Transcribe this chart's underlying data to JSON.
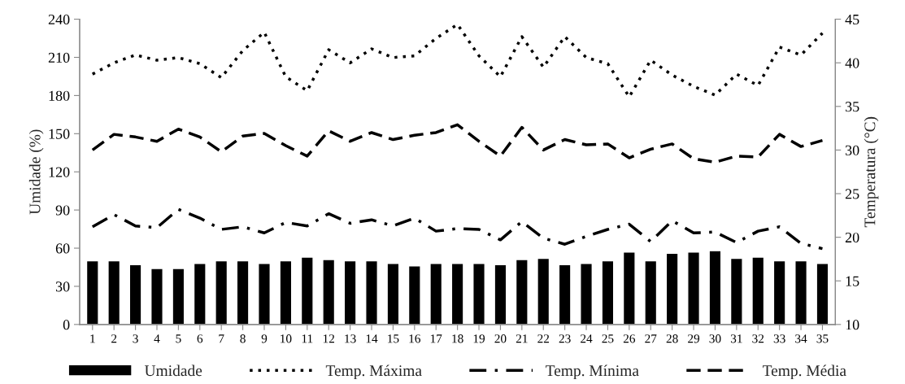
{
  "chart_data": {
    "type": "bar",
    "ylabel": "Umidade (%)",
    "y2label": "Temperatura (°C)",
    "categories": [
      "1",
      "2",
      "3",
      "4",
      "5",
      "6",
      "7",
      "8",
      "9",
      "10",
      "11",
      "12",
      "13",
      "14",
      "15",
      "16",
      "17",
      "18",
      "19",
      "20",
      "21",
      "22",
      "23",
      "24",
      "25",
      "26",
      "27",
      "28",
      "29",
      "30",
      "31",
      "32",
      "33",
      "34",
      "35"
    ],
    "series": [
      {
        "name": "Umidade",
        "color": "#000000",
        "values": [
          50,
          50,
          47,
          44,
          44,
          48,
          50,
          50,
          48,
          50,
          53,
          51,
          50,
          50,
          48,
          46,
          48,
          48,
          48,
          47,
          51,
          52,
          47,
          48,
          50,
          57,
          50,
          56,
          57,
          58,
          52,
          53,
          50,
          50,
          48
        ]
      },
      {
        "name": "Temp. Máxima",
        "type": "line",
        "axis": "y2",
        "color": "#000000",
        "line_style": "dotted",
        "values": [
          38.7,
          40.0,
          40.9,
          40.3,
          40.6,
          39.9,
          38.3,
          41.4,
          43.5,
          38.4,
          36.8,
          41.5,
          40.0,
          41.6,
          40.6,
          40.8,
          42.8,
          44.4,
          40.8,
          38.4,
          43.0,
          39.5,
          43.0,
          40.6,
          39.9,
          36.1,
          40.3,
          38.6,
          37.3,
          36.3,
          38.7,
          37.4,
          41.8,
          40.9,
          43.4
        ]
      },
      {
        "name": "Temp. Mínima",
        "type": "line",
        "axis": "y2",
        "color": "#000000",
        "line_style": "dashdot",
        "values": [
          21.2,
          22.6,
          21.3,
          21.1,
          23.2,
          22.2,
          20.9,
          21.2,
          20.5,
          21.7,
          21.3,
          22.7,
          21.6,
          22.0,
          21.3,
          22.2,
          20.7,
          21.0,
          20.9,
          19.7,
          21.8,
          19.9,
          19.2,
          20.1,
          20.9,
          21.5,
          19.5,
          21.9,
          20.5,
          20.6,
          19.4,
          20.7,
          21.2,
          19.3,
          18.7
        ]
      },
      {
        "name": "Temp. Média",
        "type": "line",
        "axis": "y2",
        "color": "#000000",
        "line_style": "dashed",
        "values": [
          30.0,
          31.8,
          31.5,
          31.0,
          32.4,
          31.5,
          29.8,
          31.6,
          31.9,
          30.5,
          29.3,
          32.2,
          31.0,
          32.0,
          31.2,
          31.7,
          32.0,
          32.9,
          31.0,
          29.3,
          32.6,
          30.0,
          31.2,
          30.6,
          30.7,
          29.1,
          30.1,
          30.7,
          29.0,
          28.6,
          29.3,
          29.2,
          31.8,
          30.4,
          31.1
        ]
      }
    ],
    "ylim": [
      0,
      240
    ],
    "yticks": [
      0,
      30,
      60,
      90,
      120,
      150,
      180,
      210,
      240
    ],
    "y2lim": [
      10,
      45
    ],
    "y2ticks": [
      10,
      15,
      20,
      25,
      30,
      35,
      40,
      45
    ],
    "grid": false,
    "legend": "bottom"
  }
}
